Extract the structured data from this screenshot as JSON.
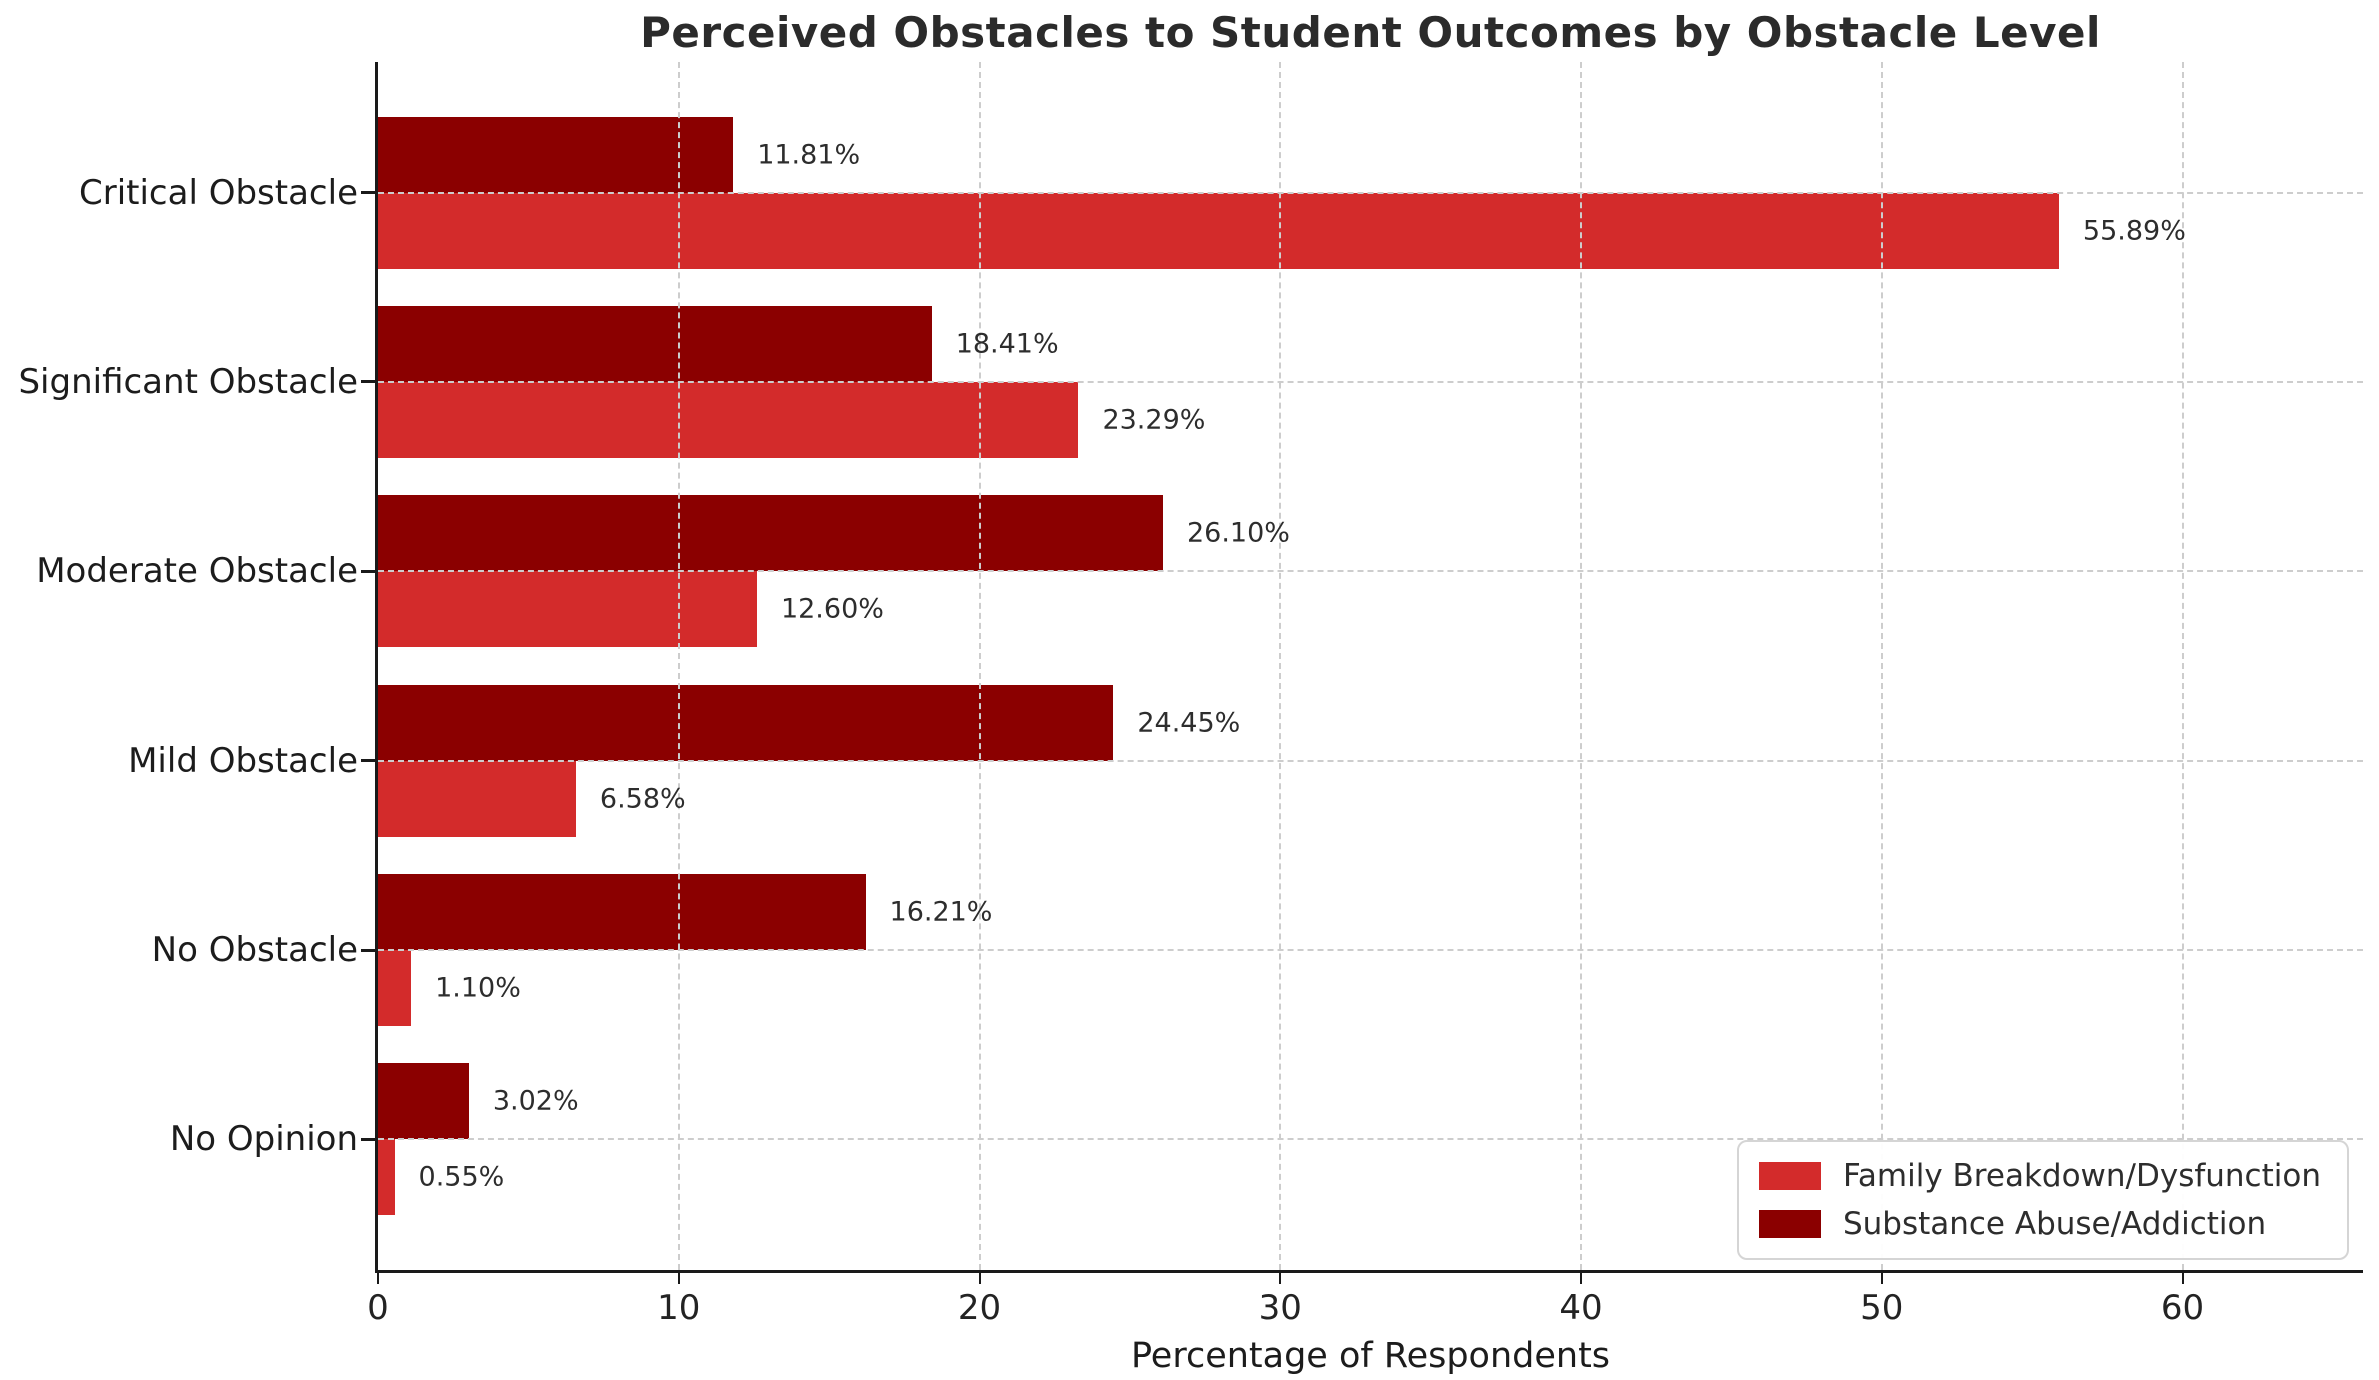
{
  "title": "Perceived Obstacles to Student Outcomes by Obstacle Level",
  "xlabel": "Percentage of Respondents",
  "colors": {
    "family_series": "#d32b2b",
    "substance_series": "#8b0000",
    "grid": "#cdcdcd",
    "spine": "#1a1a1a"
  },
  "chart_data": {
    "type": "bar",
    "orientation": "horizontal",
    "title": "Perceived Obstacles to Student Outcomes by Obstacle Level",
    "xlabel": "Percentage of Respondents",
    "ylabel": "",
    "categories": [
      "Critical Obstacle",
      "Significant Obstacle",
      "Moderate Obstacle",
      "Mild Obstacle",
      "No Obstacle",
      "No Opinion"
    ],
    "series": [
      {
        "name": "Family Breakdown/Dysfunction",
        "color": "#d32b2b",
        "position_in_group": "bottom",
        "values": [
          55.89,
          23.29,
          12.6,
          6.58,
          1.1,
          0.55
        ],
        "labels": [
          "55.89%",
          "23.29%",
          "12.60%",
          "6.58%",
          "1.10%",
          "0.55%"
        ]
      },
      {
        "name": "Substance Abuse/Addiction",
        "color": "#8b0000",
        "position_in_group": "top",
        "values": [
          11.81,
          18.41,
          26.1,
          24.45,
          16.21,
          3.02
        ],
        "labels": [
          "11.81%",
          "18.41%",
          "26.10%",
          "24.45%",
          "16.21%",
          "3.02%"
        ]
      }
    ],
    "x_ticks": [
      0,
      10,
      20,
      30,
      40,
      50,
      60
    ],
    "x_tick_labels": [
      "0",
      "10",
      "20",
      "30",
      "40",
      "50",
      "60"
    ],
    "xlim": [
      0,
      66
    ],
    "grid": true,
    "grid_style": "dashed",
    "legend_position": "lower right"
  }
}
